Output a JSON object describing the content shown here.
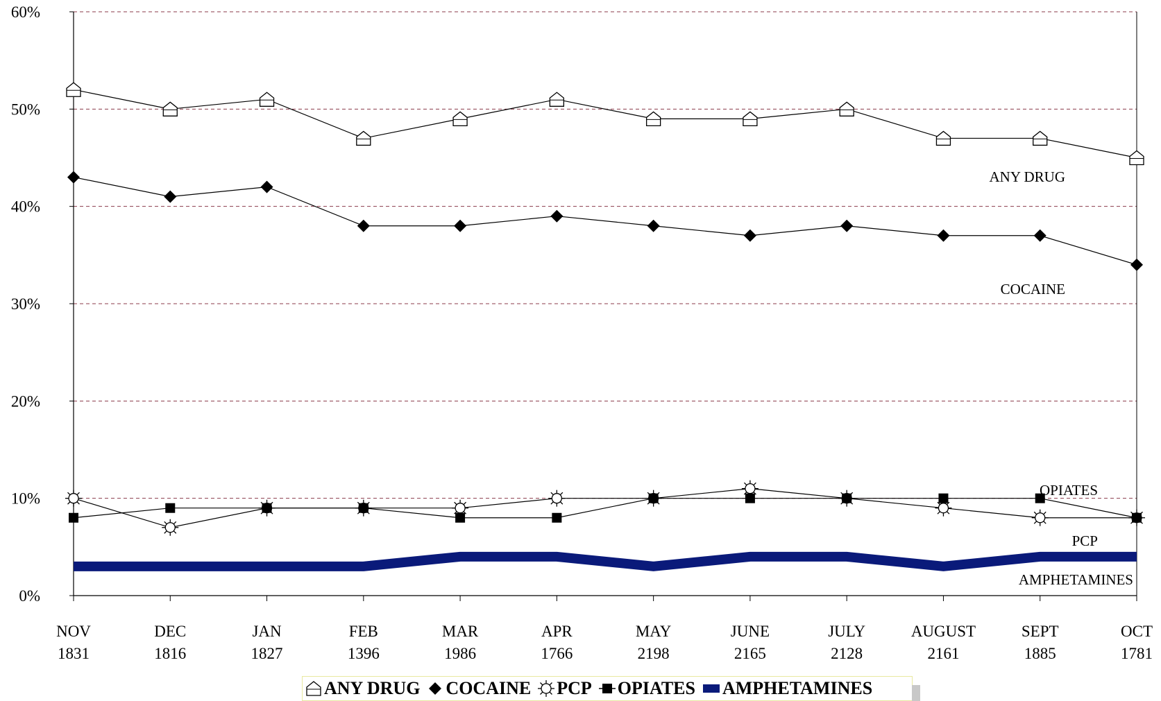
{
  "chart_data": {
    "type": "line",
    "categories": [
      "NOV",
      "DEC",
      "JAN",
      "FEB",
      "MAR",
      "APR",
      "MAY",
      "JUNE",
      "JULY",
      "AUGUST",
      "SEPT",
      "OCT"
    ],
    "category_counts": [
      "1831",
      "1816",
      "1827",
      "1396",
      "1986",
      "1766",
      "2198",
      "2165",
      "2128",
      "2161",
      "1885",
      "1781"
    ],
    "ylim": [
      0,
      60
    ],
    "yticks": [
      "0%",
      "10%",
      "20%",
      "30%",
      "40%",
      "50%",
      "60%"
    ],
    "ytick_values": [
      0,
      10,
      20,
      30,
      40,
      50,
      60
    ],
    "grid": "horizontal dashed",
    "legend_position": "bottom",
    "series": [
      {
        "name": "ANY DRUG",
        "label": "ANY DRUG",
        "marker": "house",
        "color": "#000000",
        "values": [
          52,
          50,
          51,
          47,
          49,
          51,
          49,
          49,
          50,
          47,
          47,
          45
        ]
      },
      {
        "name": "COCAINE",
        "label": "COCAINE",
        "marker": "diamond",
        "color": "#000000",
        "values": [
          43,
          41,
          42,
          38,
          38,
          39,
          38,
          37,
          38,
          37,
          37,
          34
        ]
      },
      {
        "name": "PCP",
        "label": "PCP",
        "marker": "sun",
        "color": "#000000",
        "values": [
          10,
          7,
          9,
          9,
          9,
          10,
          10,
          11,
          10,
          9,
          8,
          8
        ]
      },
      {
        "name": "OPIATES",
        "label": "OPIATES",
        "marker": "square",
        "color": "#000000",
        "values": [
          8,
          9,
          9,
          9,
          8,
          8,
          10,
          10,
          10,
          10,
          10,
          8
        ]
      },
      {
        "name": "AMPHETAMINES",
        "label": "AMPHETAMINES",
        "marker": "band",
        "color": "#0a1a7a",
        "values": [
          3,
          3,
          3,
          3,
          4,
          4,
          3,
          4,
          4,
          3,
          4,
          4
        ]
      }
    ]
  },
  "colors": {
    "grid": "#8b3a4a",
    "amphetamines": "#0a1a7a",
    "axis": "#000000"
  }
}
